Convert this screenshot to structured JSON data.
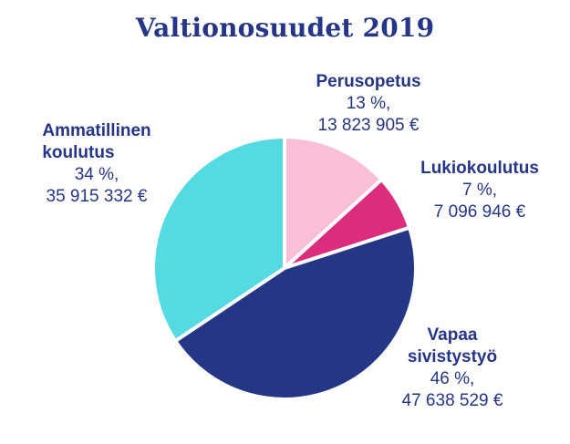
{
  "chart_data": {
    "type": "pie",
    "title": "Valtionosuudet 2019",
    "slices": [
      {
        "name": "Perusopetus",
        "percent_label": "13 %,",
        "value_label": "13 823 905 €",
        "value": 13823905,
        "color": "#F9BFD9"
      },
      {
        "name": "Lukiokoulutus",
        "percent_label": "7 %,",
        "value_label": "7 096 946 €",
        "value": 7096946,
        "color": "#DC2C7C"
      },
      {
        "name_lines": [
          "Vapaa",
          "sivistystyö"
        ],
        "percent_label": "46 %,",
        "value_label": "47 638 529 €",
        "value": 47638529,
        "color": "#263686"
      },
      {
        "name_lines": [
          "Ammatillinen",
          "koulutus"
        ],
        "percent_label": "34 %,",
        "value_label": "35 915 332 €",
        "value": 35915332,
        "color": "#55DAE1"
      }
    ],
    "legend": "none",
    "data_labels": "outside"
  }
}
